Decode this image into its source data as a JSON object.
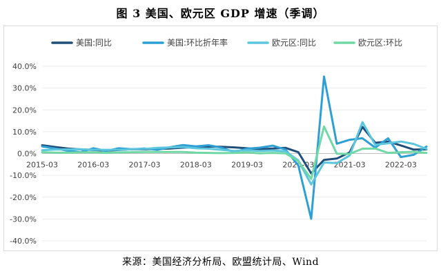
{
  "title": "图 3 美国、欧元区 GDP 增速（季调）",
  "source": "来源：美国经济分析局、欧盟统计局、Wind",
  "colors": {
    "us_yoy": "#1f4e79",
    "us_qoq_saar": "#2e9fd4",
    "ez_yoy": "#5cc6de",
    "ez_qoq": "#6fd8a5"
  },
  "chart_data": {
    "type": "line",
    "ylim": [
      -40,
      40
    ],
    "ytick_step": 10,
    "ytick_labels": [
      "40.0%",
      "30.0%",
      "20.0%",
      "10.0%",
      "0.0%",
      "-10.0%",
      "-20.0%",
      "-30.0%",
      "-40.0%"
    ],
    "xtick_labels": [
      "2015-03",
      "2016-03",
      "2017-03",
      "2018-03",
      "2019-03",
      "2020-03",
      "2021-03",
      "2022-03"
    ],
    "x": [
      "2015-03",
      "2015-06",
      "2015-09",
      "2015-12",
      "2016-03",
      "2016-06",
      "2016-09",
      "2016-12",
      "2017-03",
      "2017-06",
      "2017-09",
      "2017-12",
      "2018-03",
      "2018-06",
      "2018-09",
      "2018-12",
      "2019-03",
      "2019-06",
      "2019-09",
      "2019-12",
      "2020-03",
      "2020-06",
      "2020-09",
      "2020-12",
      "2021-03",
      "2021-06",
      "2021-09",
      "2021-12",
      "2022-03",
      "2022-06",
      "2022-09"
    ],
    "legend_position": "top",
    "grid": "horizontal",
    "series": [
      {
        "name": "美国:同比",
        "color_key": "us_yoy",
        "values": [
          3.8,
          3.0,
          2.3,
          1.9,
          1.6,
          1.3,
          1.6,
          2.0,
          1.9,
          2.1,
          2.3,
          2.7,
          2.9,
          3.2,
          3.1,
          2.8,
          2.4,
          2.0,
          2.3,
          2.6,
          0.6,
          -9.1,
          -2.9,
          -2.3,
          0.5,
          12.2,
          4.9,
          5.5,
          3.7,
          1.8,
          1.9
        ]
      },
      {
        "name": "美国:环比折年率",
        "color_key": "us_qoq_saar",
        "values": [
          3.3,
          2.3,
          1.3,
          0.6,
          2.4,
          1.2,
          2.4,
          2.0,
          2.3,
          1.7,
          2.9,
          3.9,
          3.3,
          3.8,
          2.7,
          0.7,
          2.2,
          2.7,
          3.6,
          1.8,
          -5.5,
          -29.9,
          35.3,
          4.5,
          6.3,
          7.0,
          2.7,
          7.0,
          -1.6,
          -0.6,
          3.2
        ]
      },
      {
        "name": "欧元区:同比",
        "color_key": "ez_yoy",
        "values": [
          1.5,
          1.8,
          1.9,
          2.0,
          1.7,
          1.7,
          1.7,
          2.0,
          2.1,
          2.6,
          2.8,
          3.0,
          2.4,
          2.2,
          1.7,
          1.2,
          1.5,
          1.2,
          1.4,
          1.0,
          -3.2,
          -14.2,
          -4.1,
          -4.4,
          -0.9,
          14.4,
          4.0,
          4.7,
          5.5,
          4.4,
          2.1
        ]
      },
      {
        "name": "欧元区:环比",
        "color_key": "ez_qoq",
        "values": [
          0.6,
          0.4,
          0.4,
          0.5,
          0.6,
          0.3,
          0.5,
          0.6,
          0.7,
          0.7,
          0.7,
          0.7,
          0.4,
          0.3,
          0.2,
          0.3,
          0.5,
          0.1,
          0.3,
          0.1,
          -3.5,
          -11.6,
          12.4,
          -0.1,
          -0.2,
          2.2,
          2.3,
          0.3,
          0.6,
          0.8,
          0.3
        ]
      }
    ]
  }
}
